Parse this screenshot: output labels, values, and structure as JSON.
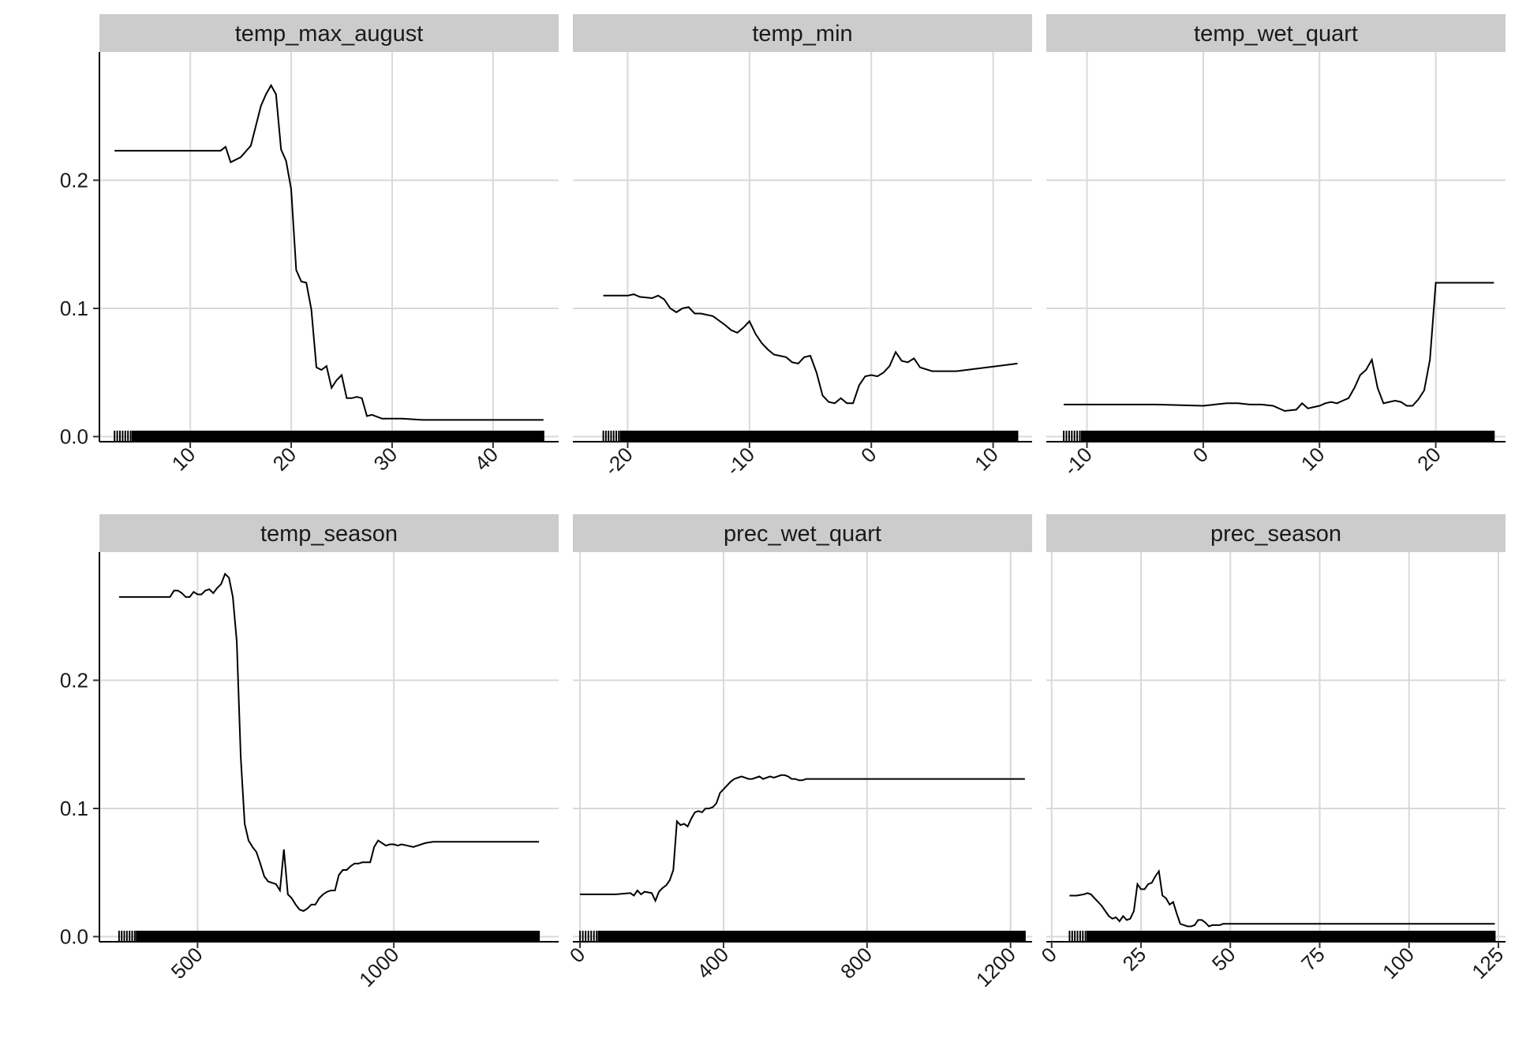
{
  "chart_data": {
    "type": "line",
    "layout": "facet-grid-2x3",
    "y_axis": {
      "ticks": [
        0.0,
        0.1,
        0.2
      ],
      "tick_labels": [
        "0.0",
        "0.1",
        "0.2"
      ],
      "ylim": [
        -0.004,
        0.3
      ]
    },
    "grid": true,
    "panels": [
      {
        "title": "temp_max_august",
        "xlim": [
          1,
          46.5
        ],
        "x_ticks": [
          10,
          20,
          30,
          40
        ],
        "x_tick_labels": [
          "10",
          "20",
          "30",
          "40"
        ],
        "rug_range": [
          2.5,
          45
        ],
        "x": [
          2.5,
          5,
          8,
          11,
          13,
          13.5,
          14,
          15,
          16,
          17,
          17.5,
          18,
          18.5,
          19,
          19.5,
          20,
          20.5,
          21,
          21.5,
          22,
          22.5,
          23,
          23.5,
          24,
          24.5,
          25,
          25.5,
          26,
          26.5,
          27,
          27.5,
          28,
          29,
          30,
          31,
          33,
          36,
          40,
          45
        ],
        "y": [
          0.223,
          0.223,
          0.223,
          0.223,
          0.223,
          0.226,
          0.214,
          0.218,
          0.227,
          0.258,
          0.267,
          0.274,
          0.267,
          0.224,
          0.215,
          0.193,
          0.13,
          0.121,
          0.12,
          0.099,
          0.054,
          0.052,
          0.055,
          0.038,
          0.044,
          0.048,
          0.03,
          0.03,
          0.031,
          0.03,
          0.016,
          0.017,
          0.014,
          0.014,
          0.014,
          0.013,
          0.013,
          0.013,
          0.013
        ]
      },
      {
        "title": "temp_min",
        "xlim": [
          -24.5,
          13.2
        ],
        "x_ticks": [
          -20,
          -10,
          0,
          10
        ],
        "x_tick_labels": [
          "-20",
          "-10",
          "0",
          "10"
        ],
        "rug_range": [
          -22,
          12
        ],
        "x": [
          -22,
          -20,
          -19.5,
          -19,
          -18,
          -17.5,
          -17,
          -16.5,
          -16,
          -15.5,
          -15,
          -14.5,
          -14,
          -13,
          -12,
          -11.5,
          -11,
          -10.5,
          -10,
          -9.5,
          -9,
          -8.5,
          -8,
          -7.5,
          -7,
          -6.5,
          -6,
          -5.5,
          -5,
          -4.5,
          -4,
          -3.5,
          -3,
          -2.5,
          -2,
          -1.5,
          -1,
          -0.5,
          0,
          0.5,
          1,
          1.5,
          2,
          2.5,
          3,
          3.5,
          4,
          5,
          7,
          12
        ],
        "y": [
          0.11,
          0.11,
          0.111,
          0.109,
          0.108,
          0.11,
          0.107,
          0.1,
          0.097,
          0.1,
          0.101,
          0.096,
          0.096,
          0.094,
          0.087,
          0.083,
          0.081,
          0.085,
          0.09,
          0.08,
          0.073,
          0.068,
          0.064,
          0.063,
          0.062,
          0.058,
          0.057,
          0.062,
          0.063,
          0.05,
          0.032,
          0.027,
          0.026,
          0.03,
          0.026,
          0.026,
          0.04,
          0.047,
          0.048,
          0.047,
          0.05,
          0.055,
          0.066,
          0.059,
          0.058,
          0.061,
          0.054,
          0.051,
          0.051,
          0.057
        ]
      },
      {
        "title": "temp_wet_quart",
        "xlim": [
          -13.5,
          26
        ],
        "x_ticks": [
          -10,
          0,
          10,
          20
        ],
        "x_tick_labels": [
          "-10",
          "0",
          "10",
          "20"
        ],
        "rug_range": [
          -12,
          25
        ],
        "x": [
          -12,
          -8,
          -4,
          0,
          1,
          2,
          3,
          4,
          5,
          6,
          7,
          8,
          8.5,
          9,
          9.5,
          10,
          10.5,
          11,
          11.5,
          12,
          12.5,
          13,
          13.5,
          14,
          14.5,
          15,
          15.5,
          16,
          16.5,
          17,
          17.5,
          18,
          18.5,
          19,
          19.5,
          20,
          21,
          23,
          25
        ],
        "y": [
          0.025,
          0.025,
          0.025,
          0.024,
          0.025,
          0.026,
          0.026,
          0.025,
          0.025,
          0.024,
          0.02,
          0.021,
          0.026,
          0.022,
          0.023,
          0.024,
          0.026,
          0.027,
          0.026,
          0.028,
          0.03,
          0.038,
          0.048,
          0.052,
          0.06,
          0.038,
          0.026,
          0.027,
          0.028,
          0.027,
          0.024,
          0.024,
          0.029,
          0.036,
          0.06,
          0.12,
          0.12,
          0.12,
          0.12
        ]
      },
      {
        "title": "temp_season",
        "xlim": [
          250,
          1420
        ],
        "x_ticks": [
          500,
          1000
        ],
        "x_tick_labels": [
          "500",
          "1000"
        ],
        "rug_range": [
          300,
          1370
        ],
        "x": [
          300,
          350,
          400,
          430,
          440,
          450,
          460,
          470,
          480,
          490,
          500,
          510,
          520,
          530,
          540,
          550,
          560,
          570,
          580,
          590,
          600,
          610,
          620,
          630,
          640,
          650,
          660,
          670,
          680,
          690,
          700,
          710,
          720,
          730,
          740,
          750,
          760,
          770,
          780,
          790,
          800,
          810,
          820,
          830,
          840,
          850,
          860,
          870,
          880,
          890,
          900,
          910,
          920,
          930,
          940,
          950,
          960,
          970,
          980,
          990,
          1000,
          1010,
          1020,
          1050,
          1080,
          1100,
          1150,
          1250,
          1370
        ],
        "y": [
          0.265,
          0.265,
          0.265,
          0.265,
          0.27,
          0.27,
          0.268,
          0.265,
          0.265,
          0.269,
          0.267,
          0.267,
          0.27,
          0.271,
          0.268,
          0.272,
          0.275,
          0.283,
          0.28,
          0.265,
          0.23,
          0.14,
          0.088,
          0.075,
          0.07,
          0.066,
          0.057,
          0.047,
          0.043,
          0.042,
          0.041,
          0.036,
          0.068,
          0.033,
          0.03,
          0.025,
          0.021,
          0.02,
          0.022,
          0.025,
          0.025,
          0.03,
          0.033,
          0.035,
          0.036,
          0.036,
          0.048,
          0.052,
          0.052,
          0.055,
          0.057,
          0.057,
          0.058,
          0.058,
          0.058,
          0.07,
          0.075,
          0.073,
          0.071,
          0.072,
          0.072,
          0.071,
          0.072,
          0.07,
          0.073,
          0.074,
          0.074,
          0.074,
          0.074
        ]
      },
      {
        "title": "prec_wet_quart",
        "xlim": [
          -20,
          1260
        ],
        "x_ticks": [
          0,
          400,
          800,
          1200
        ],
        "x_tick_labels": [
          "0",
          "400",
          "800",
          "1200"
        ],
        "rug_range": [
          0,
          1240
        ],
        "x": [
          0,
          50,
          100,
          140,
          150,
          160,
          170,
          180,
          200,
          210,
          220,
          230,
          240,
          250,
          260,
          270,
          280,
          290,
          300,
          310,
          320,
          330,
          340,
          350,
          360,
          370,
          380,
          390,
          400,
          410,
          420,
          430,
          440,
          450,
          460,
          470,
          480,
          490,
          500,
          510,
          520,
          530,
          540,
          550,
          560,
          570,
          580,
          590,
          600,
          610,
          620,
          630,
          640,
          650,
          700,
          800,
          1000,
          1240
        ],
        "y": [
          0.033,
          0.033,
          0.033,
          0.034,
          0.032,
          0.036,
          0.033,
          0.035,
          0.034,
          0.028,
          0.035,
          0.038,
          0.04,
          0.044,
          0.052,
          0.09,
          0.087,
          0.088,
          0.086,
          0.092,
          0.097,
          0.098,
          0.097,
          0.1,
          0.1,
          0.101,
          0.104,
          0.112,
          0.115,
          0.118,
          0.121,
          0.123,
          0.124,
          0.125,
          0.124,
          0.123,
          0.123,
          0.124,
          0.125,
          0.123,
          0.124,
          0.125,
          0.124,
          0.125,
          0.126,
          0.126,
          0.125,
          0.123,
          0.123,
          0.122,
          0.122,
          0.123,
          0.123,
          0.123,
          0.123,
          0.123,
          0.123,
          0.123
        ]
      },
      {
        "title": "prec_season",
        "xlim": [
          -1.5,
          127
        ],
        "x_ticks": [
          0,
          25,
          50,
          75,
          100,
          125
        ],
        "x_tick_labels": [
          "0",
          "25",
          "50",
          "75",
          "100",
          "125"
        ],
        "rug_range": [
          5,
          124
        ],
        "x": [
          5,
          7,
          9,
          10,
          11,
          12,
          13,
          14,
          15,
          16,
          17,
          18,
          19,
          20,
          21,
          22,
          23,
          24,
          25,
          26,
          27,
          28,
          29,
          30,
          31,
          32,
          33,
          34,
          35,
          36,
          37,
          38,
          39,
          40,
          41,
          42,
          43,
          44,
          45,
          46,
          47,
          48,
          49,
          50,
          60,
          80,
          100,
          124
        ],
        "y": [
          0.032,
          0.032,
          0.033,
          0.034,
          0.033,
          0.03,
          0.027,
          0.024,
          0.02,
          0.016,
          0.014,
          0.015,
          0.012,
          0.016,
          0.013,
          0.014,
          0.02,
          0.041,
          0.037,
          0.037,
          0.041,
          0.042,
          0.047,
          0.051,
          0.032,
          0.03,
          0.025,
          0.027,
          0.018,
          0.01,
          0.009,
          0.008,
          0.008,
          0.009,
          0.013,
          0.013,
          0.011,
          0.008,
          0.009,
          0.009,
          0.009,
          0.01,
          0.01,
          0.01,
          0.01,
          0.01,
          0.01,
          0.01
        ]
      }
    ]
  }
}
